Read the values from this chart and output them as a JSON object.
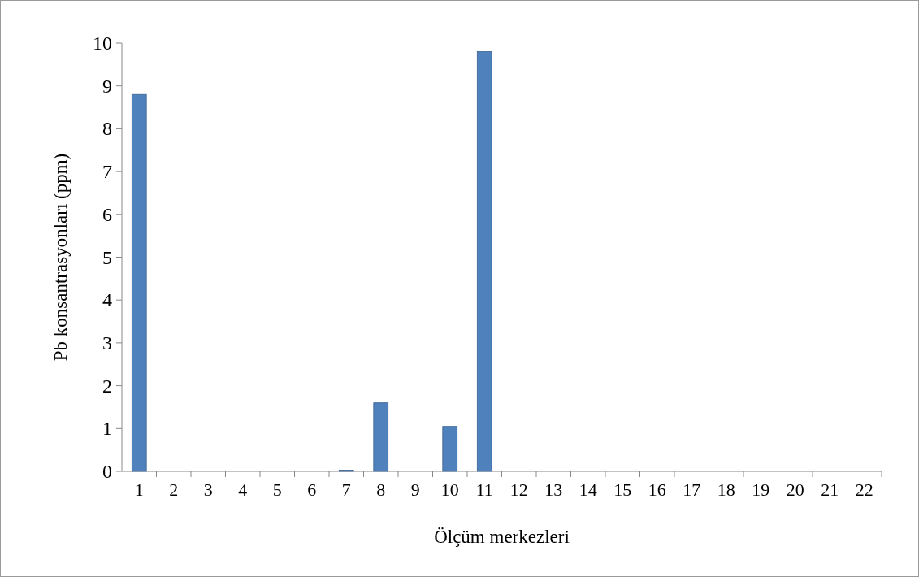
{
  "chart_data": {
    "type": "bar",
    "xlabel": "Ölçüm merkezleri",
    "ylabel": "Pb konsantrasyonları (ppm)",
    "categories": [
      "1",
      "2",
      "3",
      "4",
      "5",
      "6",
      "7",
      "8",
      "9",
      "10",
      "11",
      "12",
      "13",
      "14",
      "15",
      "16",
      "17",
      "18",
      "19",
      "20",
      "21",
      "22"
    ],
    "values": [
      8.8,
      0,
      0,
      0,
      0,
      0,
      0.03,
      1.6,
      0,
      1.05,
      9.8,
      0,
      0,
      0,
      0,
      0,
      0,
      0,
      0,
      0,
      0,
      0
    ],
    "color": "#4f81bd",
    "ylim": [
      0,
      10
    ],
    "yticks": [
      0,
      1,
      2,
      3,
      4,
      5,
      6,
      7,
      8,
      9,
      10
    ],
    "grid": false
  }
}
